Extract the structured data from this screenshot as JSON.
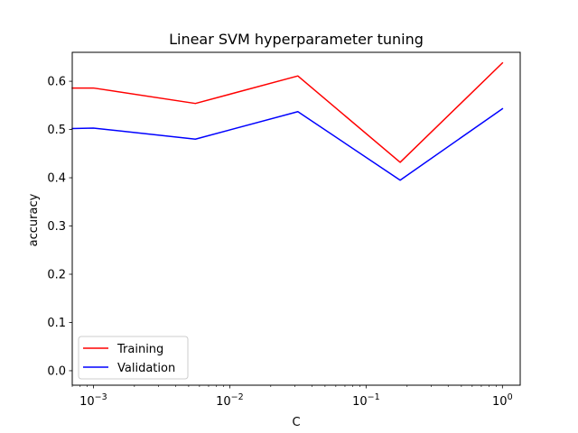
{
  "chart_data": {
    "type": "line",
    "title": "Linear SVM hyperparameter tuning",
    "xlabel": "C",
    "ylabel": "accuracy",
    "xscale": "log",
    "xlim": [
      0.0007,
      1.35
    ],
    "ylim": [
      -0.03,
      0.66
    ],
    "x": [
      0.0007,
      0.001,
      0.0056,
      0.0316,
      0.1778,
      1.0
    ],
    "series": [
      {
        "name": "Training",
        "color": "#ff0000",
        "values": [
          0.586,
          0.586,
          0.554,
          0.611,
          0.432,
          0.638
        ]
      },
      {
        "name": "Validation",
        "color": "#0000ff",
        "values": [
          0.502,
          0.503,
          0.48,
          0.537,
          0.395,
          0.543
        ]
      }
    ],
    "xticks": [
      {
        "value": 0.001,
        "base": "10",
        "exp": "−3"
      },
      {
        "value": 0.01,
        "base": "10",
        "exp": "−2"
      },
      {
        "value": 0.1,
        "base": "10",
        "exp": "−1"
      },
      {
        "value": 1,
        "base": "10",
        "exp": "0"
      }
    ],
    "yticks": [
      {
        "value": 0.0,
        "label": "0.0"
      },
      {
        "value": 0.1,
        "label": "0.1"
      },
      {
        "value": 0.2,
        "label": "0.2"
      },
      {
        "value": 0.3,
        "label": "0.3"
      },
      {
        "value": 0.4,
        "label": "0.4"
      },
      {
        "value": 0.5,
        "label": "0.5"
      },
      {
        "value": 0.6,
        "label": "0.6"
      }
    ],
    "grid": false,
    "legend_position": "lower-left"
  }
}
